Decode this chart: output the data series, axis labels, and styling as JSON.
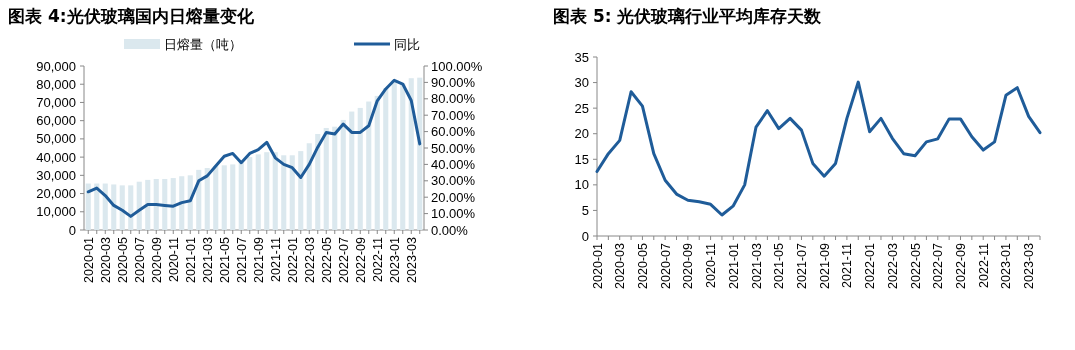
{
  "chart_data": [
    {
      "type": "bar",
      "title": "图表 4:光伏玻璃国内日熔量变化",
      "categories": [
        "2020-01",
        null,
        "2020-03",
        null,
        "2020-05",
        null,
        "2020-07",
        null,
        "2020-09",
        null,
        "2020-11",
        null,
        "2021-01",
        null,
        "2021-03",
        null,
        "2021-05",
        null,
        "2021-07",
        null,
        "2021-09",
        null,
        "2021-11",
        null,
        "2022-01",
        null,
        "2022-03",
        null,
        "2022-05",
        null,
        "2022-07",
        null,
        "2022-09",
        null,
        "2022-11",
        null,
        "2023-01",
        null,
        "2023-03",
        null
      ],
      "series": [
        {
          "name": "日熔量（吨）",
          "type": "bar",
          "color": "#dbe8ee",
          "values": [
            25500,
            25500,
            25500,
            25000,
            24500,
            24500,
            26500,
            27500,
            28000,
            28000,
            28500,
            29500,
            30000,
            33000,
            34000,
            35000,
            35500,
            36000,
            37000,
            40000,
            41500,
            42700,
            42700,
            41000,
            41000,
            43300,
            47600,
            52700,
            56000,
            56700,
            60400,
            65000,
            67000,
            70500,
            73600,
            77800,
            82200,
            80400,
            83300,
            83600
          ]
        },
        {
          "name": "同比",
          "type": "line",
          "axis": "y2",
          "color": "#1f5c99",
          "values": [
            23.3,
            25.6,
            21,
            15,
            12,
            8.3,
            12,
            15.5,
            15.5,
            15,
            14.5,
            16.7,
            17.8,
            30,
            33,
            39,
            45,
            46.7,
            41,
            46.7,
            49,
            53.5,
            44,
            40,
            38,
            32,
            40,
            50.5,
            59.5,
            58.5,
            64.6,
            59.5,
            59.5,
            63.6,
            78.8,
            86,
            91.3,
            89,
            79,
            52.5
          ]
        }
      ],
      "ylim": [
        0,
        90000
      ],
      "yticks": [
        0,
        {
          "value": 10000,
          "label": "10,000"
        },
        {
          "value": 20000,
          "label": "20,000"
        },
        {
          "value": 30000,
          "label": "30,000"
        },
        {
          "value": 40000,
          "label": "40,000"
        },
        {
          "value": 50000,
          "label": "50,000"
        },
        {
          "value": 60000,
          "label": "60,000"
        },
        {
          "value": 70000,
          "label": "70,000"
        },
        {
          "value": 80000,
          "label": "80,000"
        },
        {
          "value": 90000,
          "label": "90,000"
        }
      ],
      "y2lim": [
        0,
        100
      ],
      "y2ticks": [
        {
          "value": 0,
          "label": "0.00%"
        },
        {
          "value": 10,
          "label": "10.00%"
        },
        {
          "value": 20,
          "label": "20.00%"
        },
        {
          "value": 30,
          "label": "30.00%"
        },
        {
          "value": 40,
          "label": "40.00%"
        },
        {
          "value": 50,
          "label": "50.00%"
        },
        {
          "value": 60,
          "label": "60.00%"
        },
        {
          "value": 70,
          "label": "70.00%"
        },
        {
          "value": 80,
          "label": "80.00%"
        },
        {
          "value": 90,
          "label": "90.00%"
        },
        {
          "value": 100,
          "label": "100.00%"
        }
      ],
      "legend": "top"
    },
    {
      "type": "line",
      "title": "图表 5: 光伏玻璃行业平均库存天数",
      "categories": [
        "2020-01",
        null,
        "2020-03",
        null,
        "2020-05",
        null,
        "2020-07",
        null,
        "2020-09",
        null,
        "2020-11",
        null,
        "2021-01",
        null,
        "2021-03",
        null,
        "2021-05",
        null,
        "2021-07",
        null,
        "2021-09",
        null,
        "2021-11",
        null,
        "2022-01",
        null,
        "2022-03",
        null,
        "2022-05",
        null,
        "2022-07",
        null,
        "2022-09",
        null,
        "2022-11",
        null,
        "2023-01",
        null,
        "2023-03",
        null
      ],
      "color": "#1f5c99",
      "values": [
        12.6,
        16.1,
        18.7,
        28.2,
        25.4,
        16.1,
        10.9,
        8.2,
        7,
        6.7,
        6.2,
        4.1,
        5.9,
        10,
        21.3,
        24.5,
        21,
        23,
        20.7,
        14.2,
        11.7,
        14.2,
        23,
        30.1,
        20.4,
        23,
        19.1,
        16.1,
        15.7,
        18.4,
        19,
        22.9,
        22.9,
        19.4,
        16.8,
        18.4,
        27.5,
        29,
        23.4,
        20.2
      ],
      "ylim": [
        0,
        35
      ],
      "yticks": [
        0,
        5,
        10,
        15,
        20,
        25,
        30,
        35
      ]
    }
  ]
}
